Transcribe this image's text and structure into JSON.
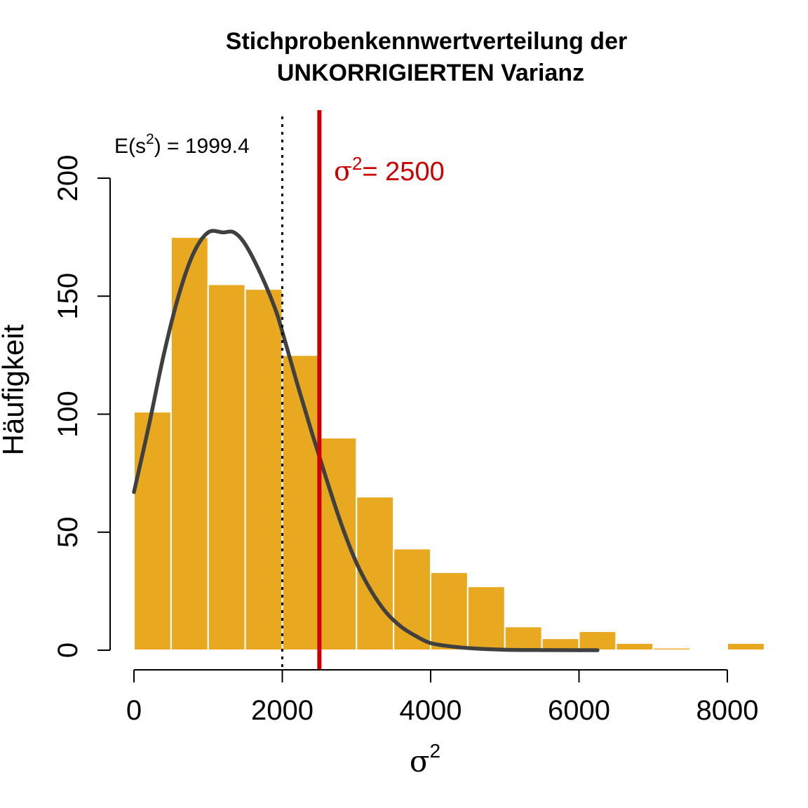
{
  "chart_data": {
    "type": "bar",
    "title_line1": "Stichprobenkennwertverteilung der",
    "title_line2": "UNKORRIGIERTEN Varianz",
    "xlabel": {
      "symbol": "σ",
      "sup": "2"
    },
    "ylabel": "Häufigkeit",
    "xlim": [
      -200,
      8400
    ],
    "ylim": [
      0,
      200
    ],
    "x_ticks": [
      0,
      2000,
      4000,
      6000,
      8000
    ],
    "x_tick_labels": [
      "0",
      "2000",
      "4000",
      "6000",
      "8000"
    ],
    "y_ticks": [
      0,
      50,
      100,
      150,
      200
    ],
    "y_tick_labels": [
      "0",
      "50",
      "100",
      "150",
      "200"
    ],
    "bin_width": 500,
    "bins": [
      {
        "start": 0,
        "end": 500,
        "count": 101
      },
      {
        "start": 500,
        "end": 1000,
        "count": 175
      },
      {
        "start": 1000,
        "end": 1500,
        "count": 155
      },
      {
        "start": 1500,
        "end": 2000,
        "count": 153
      },
      {
        "start": 2000,
        "end": 2500,
        "count": 125
      },
      {
        "start": 2500,
        "end": 3000,
        "count": 90
      },
      {
        "start": 3000,
        "end": 3500,
        "count": 65
      },
      {
        "start": 3500,
        "end": 4000,
        "count": 43
      },
      {
        "start": 4000,
        "end": 4500,
        "count": 33
      },
      {
        "start": 4500,
        "end": 5000,
        "count": 27
      },
      {
        "start": 5000,
        "end": 5500,
        "count": 10
      },
      {
        "start": 5500,
        "end": 6000,
        "count": 5
      },
      {
        "start": 6000,
        "end": 6500,
        "count": 8
      },
      {
        "start": 6500,
        "end": 7000,
        "count": 3
      },
      {
        "start": 7000,
        "end": 7500,
        "count": 1
      },
      {
        "start": 7500,
        "end": 8000,
        "count": 0
      },
      {
        "start": 8000,
        "end": 8500,
        "count": 3
      }
    ],
    "density_curve": {
      "x": [
        0,
        200,
        400,
        600,
        800,
        1000,
        1200,
        1350,
        1500,
        1700,
        1900,
        2000,
        2200,
        2400,
        2600,
        2800,
        3000,
        3200,
        3400,
        3600,
        3800,
        4000,
        4300,
        4600,
        5000,
        5500,
        6000,
        6250
      ],
      "y": [
        67,
        95,
        125,
        150,
        168,
        177,
        177,
        177,
        172,
        160,
        145,
        135,
        113,
        92,
        72,
        53,
        37,
        25,
        16,
        10,
        6,
        3,
        1.5,
        0.7,
        0.2,
        0.05,
        0.01,
        0
      ]
    },
    "mean_line": {
      "x": 1999.4,
      "label_prefix": "E(s",
      "label_sup": "2",
      "label_suffix": ") = 1999.4"
    },
    "true_line": {
      "x": 2500,
      "label_symbol": "σ",
      "label_sup": "2",
      "label_suffix": "= 2500"
    },
    "colors": {
      "bar": "#e8a820",
      "bar_edge": "#ffffff",
      "curve": "#404040",
      "true_line": "#cc0000",
      "mean_line": "#000000",
      "axis": "#000000"
    }
  }
}
